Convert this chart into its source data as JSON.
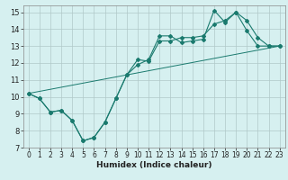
{
  "xlabel": "Humidex (Indice chaleur)",
  "ylabel": "",
  "background_color": "#d6f0f0",
  "grid_color": "#b0c8c8",
  "line_color": "#1a7a6e",
  "xlim": [
    -0.5,
    23.5
  ],
  "ylim": [
    7,
    15.4
  ],
  "xticks": [
    0,
    1,
    2,
    3,
    4,
    5,
    6,
    7,
    8,
    9,
    10,
    11,
    12,
    13,
    14,
    15,
    16,
    17,
    18,
    19,
    20,
    21,
    22,
    23
  ],
  "yticks": [
    7,
    8,
    9,
    10,
    11,
    12,
    13,
    14,
    15
  ],
  "series1_x": [
    0,
    1,
    2,
    3,
    4,
    5,
    6,
    7,
    8,
    9,
    10,
    11,
    12,
    13,
    14,
    15,
    16,
    17,
    18,
    19,
    20,
    21,
    22,
    23
  ],
  "series1_y": [
    10.2,
    9.9,
    9.1,
    9.2,
    8.6,
    7.4,
    7.6,
    8.5,
    9.9,
    11.3,
    11.9,
    12.2,
    13.6,
    13.6,
    13.2,
    13.3,
    13.4,
    15.1,
    14.4,
    15.0,
    13.9,
    13.0,
    13.0,
    13.0
  ],
  "series2_x": [
    0,
    1,
    2,
    3,
    4,
    5,
    6,
    7,
    8,
    9,
    10,
    11,
    12,
    13,
    14,
    15,
    16,
    17,
    18,
    19,
    20,
    21,
    22,
    23
  ],
  "series2_y": [
    10.2,
    9.9,
    9.1,
    9.2,
    8.6,
    7.4,
    7.6,
    8.5,
    9.9,
    11.3,
    12.2,
    12.1,
    13.3,
    13.3,
    13.5,
    13.5,
    13.6,
    14.3,
    14.5,
    15.0,
    14.5,
    13.5,
    13.0,
    13.0
  ],
  "series3_x": [
    0,
    23
  ],
  "series3_y": [
    10.2,
    13.0
  ],
  "tick_fontsize": 5.5,
  "xlabel_fontsize": 6.5,
  "marker_size": 2.0
}
